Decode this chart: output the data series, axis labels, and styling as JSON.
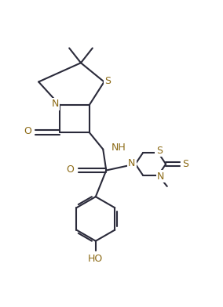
{
  "bg_color": "#ffffff",
  "line_color": "#2a2a3a",
  "heteroatom_color": "#8B6914",
  "bond_lw": 1.5,
  "figsize": [
    2.84,
    3.92
  ],
  "dpi": 100,
  "xlim": [
    -1.0,
    9.5
  ],
  "ylim": [
    0.5,
    14.5
  ]
}
